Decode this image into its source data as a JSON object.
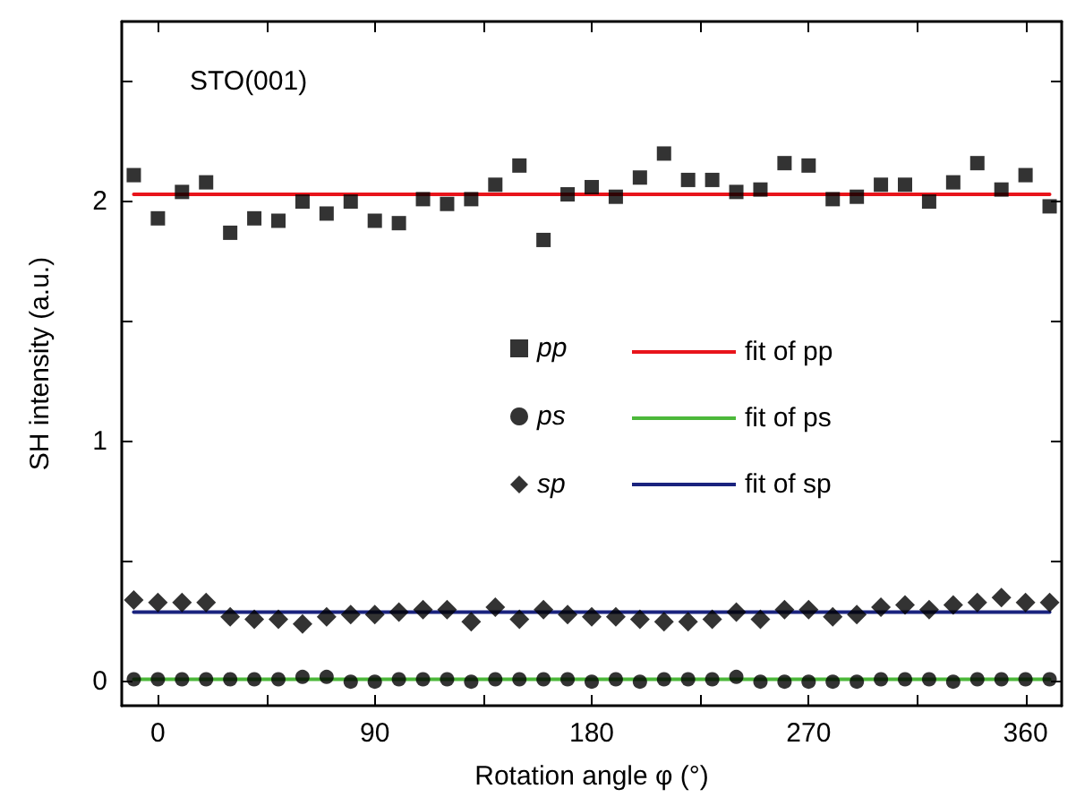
{
  "chart_data": {
    "type": "scatter",
    "xlabel": "Rotation angle φ (°)",
    "ylabel": "SH intensity (a.u.)",
    "annotations": [
      "STO(001)"
    ],
    "x": [
      -10,
      0,
      10,
      20,
      30,
      40,
      50,
      60,
      70,
      80,
      90,
      100,
      110,
      120,
      130,
      140,
      150,
      160,
      170,
      180,
      190,
      200,
      210,
      220,
      230,
      240,
      250,
      260,
      270,
      280,
      290,
      300,
      310,
      320,
      330,
      340,
      350,
      360,
      370
    ],
    "series": [
      {
        "name": "pp",
        "color": "#000000",
        "marker": "square",
        "values": [
          2.11,
          1.93,
          2.04,
          2.08,
          1.87,
          1.93,
          1.92,
          2.0,
          1.95,
          2.0,
          1.92,
          1.91,
          2.01,
          1.99,
          2.01,
          2.07,
          2.15,
          1.84,
          2.03,
          2.06,
          2.02,
          2.1,
          2.2,
          2.09,
          2.09,
          2.04,
          2.05,
          2.16,
          2.15,
          2.01,
          2.02,
          2.07,
          2.07,
          2.0,
          2.08,
          2.16,
          2.05,
          2.11,
          1.98
        ]
      },
      {
        "name": "ps",
        "color": "#000000",
        "marker": "circle",
        "values": [
          0.01,
          0.01,
          0.01,
          0.01,
          0.01,
          0.01,
          0.01,
          0.02,
          0.02,
          0.0,
          0.0,
          0.01,
          0.01,
          0.01,
          0.0,
          0.01,
          0.01,
          0.01,
          0.01,
          0.0,
          0.01,
          0.0,
          0.01,
          0.01,
          0.01,
          0.02,
          0.0,
          0.0,
          0.0,
          0.0,
          0.0,
          0.01,
          0.01,
          0.01,
          0.0,
          0.01,
          0.01,
          0.01,
          0.01
        ]
      },
      {
        "name": "sp",
        "color": "#000000",
        "marker": "diamond",
        "values": [
          0.34,
          0.33,
          0.33,
          0.33,
          0.27,
          0.26,
          0.26,
          0.24,
          0.27,
          0.28,
          0.28,
          0.29,
          0.3,
          0.3,
          0.25,
          0.31,
          0.26,
          0.3,
          0.28,
          0.27,
          0.27,
          0.26,
          0.25,
          0.25,
          0.26,
          0.29,
          0.26,
          0.3,
          0.3,
          0.27,
          0.28,
          0.31,
          0.32,
          0.3,
          0.32,
          0.33,
          0.35,
          0.33,
          0.33
        ]
      },
      {
        "name": "fit of pp",
        "type": "line",
        "color": "#e8141b",
        "marker": "none",
        "values": [
          2.03,
          2.03,
          2.03,
          2.03,
          2.03,
          2.03,
          2.03,
          2.03,
          2.03,
          2.03,
          2.03,
          2.03,
          2.03,
          2.03,
          2.03,
          2.03,
          2.03,
          2.03,
          2.03,
          2.03,
          2.03,
          2.03,
          2.03,
          2.03,
          2.03,
          2.03,
          2.03,
          2.03,
          2.03,
          2.03,
          2.03,
          2.03,
          2.03,
          2.03,
          2.03,
          2.03,
          2.03,
          2.03,
          2.03
        ]
      },
      {
        "name": "fit of ps",
        "type": "line",
        "color": "#4cb83a",
        "marker": "none",
        "values": [
          0.01,
          0.01,
          0.01,
          0.01,
          0.01,
          0.01,
          0.01,
          0.01,
          0.01,
          0.01,
          0.01,
          0.01,
          0.01,
          0.01,
          0.01,
          0.01,
          0.01,
          0.01,
          0.01,
          0.01,
          0.01,
          0.01,
          0.01,
          0.01,
          0.01,
          0.01,
          0.01,
          0.01,
          0.01,
          0.01,
          0.01,
          0.01,
          0.01,
          0.01,
          0.01,
          0.01,
          0.01,
          0.01,
          0.01
        ]
      },
      {
        "name": "fit of sp",
        "type": "line",
        "color": "#1a237e",
        "marker": "none",
        "values": [
          0.29,
          0.29,
          0.29,
          0.29,
          0.29,
          0.29,
          0.29,
          0.29,
          0.29,
          0.29,
          0.29,
          0.29,
          0.29,
          0.29,
          0.29,
          0.29,
          0.29,
          0.29,
          0.29,
          0.29,
          0.29,
          0.29,
          0.29,
          0.29,
          0.29,
          0.29,
          0.29,
          0.29,
          0.29,
          0.29,
          0.29,
          0.29,
          0.29,
          0.29,
          0.29,
          0.29,
          0.29,
          0.29,
          0.29
        ]
      }
    ],
    "xlim": [
      -15,
      375
    ],
    "xticks": [
      0,
      {
        "value": 45,
        "label": null
      },
      90,
      {
        "value": 135,
        "label": null
      },
      180,
      {
        "value": 225,
        "label": null
      },
      270,
      {
        "value": 315,
        "label": null
      },
      360
    ],
    "ylim": [
      -0.1,
      2.75
    ],
    "yticks": [
      0,
      {
        "value": 0.5,
        "label": null
      },
      1,
      {
        "value": 1.5,
        "label": null
      },
      2,
      {
        "value": 2.5,
        "label": null
      }
    ],
    "grid": false,
    "legend": "right",
    "line_style": "solid"
  }
}
